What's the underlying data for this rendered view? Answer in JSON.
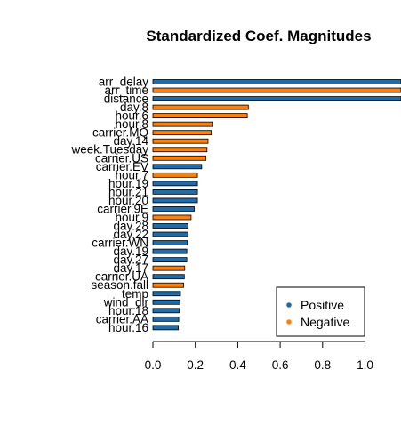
{
  "chart_data": {
    "type": "bar",
    "orientation": "horizontal",
    "title": "Standardized Coef. Magnitudes",
    "xlabel": "",
    "ylabel": "",
    "xlim": [
      0,
      1.17
    ],
    "xticks": [
      "0.0",
      "0.2",
      "0.4",
      "0.6",
      "0.8",
      "1.0"
    ],
    "grid": false,
    "legend_position": "bottom-right",
    "colors": {
      "Positive": "#1f6ca8",
      "Negative": "#ff7f0e"
    },
    "legend": [
      {
        "name": "Positive",
        "color": "#1f6ca8"
      },
      {
        "name": "Negative",
        "color": "#ff7f0e"
      }
    ],
    "categories": [
      "arr_delay",
      "arr_time",
      "distance",
      "day.8",
      "hour.6",
      "hour.8",
      "carrier.MQ",
      "day.14",
      "week.Tuesday",
      "carrier.US",
      "carrier.EV",
      "hour.7",
      "hour.19",
      "hour.21",
      "hour.20",
      "carrier.9E",
      "hour.9",
      "day.28",
      "day.22",
      "carrier.WN",
      "day.19",
      "day.27",
      "day.17",
      "carrier.UA",
      "season.fall",
      "temp",
      "wind_dir",
      "hour.18",
      "carrier.AA",
      "hour.16"
    ],
    "values": [
      1.17,
      1.17,
      1.17,
      0.45,
      0.445,
      0.28,
      0.275,
      0.26,
      0.255,
      0.25,
      0.23,
      0.21,
      0.21,
      0.21,
      0.21,
      0.195,
      0.18,
      0.165,
      0.165,
      0.163,
      0.16,
      0.16,
      0.15,
      0.148,
      0.145,
      0.13,
      0.128,
      0.125,
      0.122,
      0.12
    ],
    "signs": [
      "Positive",
      "Negative",
      "Positive",
      "Negative",
      "Negative",
      "Negative",
      "Negative",
      "Negative",
      "Negative",
      "Negative",
      "Positive",
      "Negative",
      "Positive",
      "Positive",
      "Positive",
      "Positive",
      "Negative",
      "Positive",
      "Positive",
      "Positive",
      "Positive",
      "Positive",
      "Negative",
      "Positive",
      "Negative",
      "Positive",
      "Positive",
      "Positive",
      "Positive",
      "Positive"
    ]
  }
}
